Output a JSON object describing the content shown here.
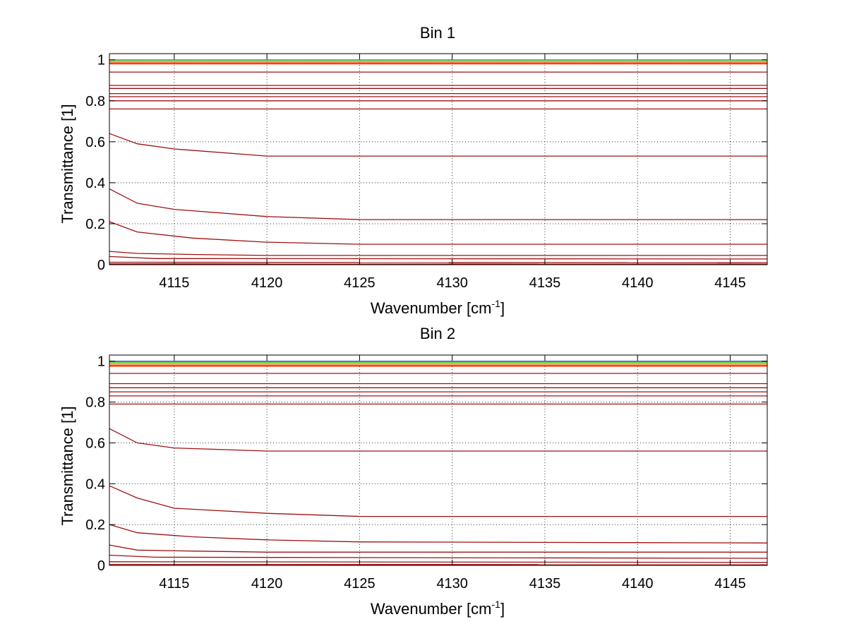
{
  "chart_data": [
    {
      "type": "line",
      "title": "Bin 1",
      "xlabel": "Wavenumber [cm",
      "xlabel_sup": "-1",
      "xlabel_end": "]",
      "ylabel": "Transmittance [1]",
      "xlim": [
        4111.5,
        4147.0
      ],
      "ylim": [
        0,
        1.03
      ],
      "xticks": [
        4115,
        4120,
        4125,
        4130,
        4135,
        4140,
        4145
      ],
      "xtick_labels": [
        "4115",
        "4120",
        "4125",
        "4130",
        "4135",
        "4140",
        "4145"
      ],
      "yticks": [
        0,
        0.2,
        0.4,
        0.6,
        0.8,
        1
      ],
      "ytick_labels": [
        "0",
        "0.2",
        "0.4",
        "0.6",
        "0.8",
        "1"
      ],
      "grid": true,
      "series": [
        {
          "color": "#1f5fd6",
          "x": [
            4111.5,
            4147.0
          ],
          "y": [
            0.999,
            0.999
          ]
        },
        {
          "color": "#22b5d8",
          "x": [
            4111.5,
            4147.0
          ],
          "y": [
            0.997,
            0.997
          ]
        },
        {
          "color": "#6cc24a",
          "x": [
            4111.5,
            4147.0
          ],
          "y": [
            0.995,
            0.995
          ]
        },
        {
          "color": "#e8d21a",
          "x": [
            4111.5,
            4147.0
          ],
          "y": [
            0.993,
            0.993
          ]
        },
        {
          "color": "#f59a1c",
          "x": [
            4111.5,
            4147.0
          ],
          "y": [
            0.99,
            0.99
          ]
        },
        {
          "color": "#ff2a00",
          "x": [
            4111.5,
            4147.0
          ],
          "y": [
            0.985,
            0.985
          ]
        },
        {
          "color": "#ff2a00",
          "x": [
            4111.5,
            4147.0
          ],
          "y": [
            0.98,
            0.98
          ]
        },
        {
          "color": "#a01010",
          "x": [
            4111.5,
            4147.0
          ],
          "y": [
            0.94,
            0.94
          ]
        },
        {
          "color": "#a01010",
          "x": [
            4111.5,
            4147.0
          ],
          "y": [
            0.875,
            0.875
          ]
        },
        {
          "color": "#a01010",
          "x": [
            4111.5,
            4147.0
          ],
          "y": [
            0.86,
            0.86
          ]
        },
        {
          "color": "#a01010",
          "x": [
            4111.5,
            4147.0
          ],
          "y": [
            0.835,
            0.835
          ]
        },
        {
          "color": "#a01010",
          "x": [
            4111.5,
            4147.0
          ],
          "y": [
            0.82,
            0.82
          ]
        },
        {
          "color": "#a01010",
          "x": [
            4111.5,
            4147.0
          ],
          "y": [
            0.8,
            0.8
          ]
        },
        {
          "color": "#a01010",
          "x": [
            4111.5,
            4147.0
          ],
          "y": [
            0.76,
            0.76
          ]
        },
        {
          "color": "#a01010",
          "x": [
            4111.5,
            4113,
            4115,
            4120,
            4147.0
          ],
          "y": [
            0.64,
            0.59,
            0.565,
            0.53,
            0.53
          ]
        },
        {
          "color": "#a01010",
          "x": [
            4111.5,
            4113,
            4115,
            4120,
            4125,
            4147.0
          ],
          "y": [
            0.37,
            0.3,
            0.27,
            0.235,
            0.22,
            0.22
          ]
        },
        {
          "color": "#a01010",
          "x": [
            4111.5,
            4113,
            4116,
            4120,
            4125,
            4147.0
          ],
          "y": [
            0.21,
            0.16,
            0.13,
            0.11,
            0.1,
            0.1
          ]
        },
        {
          "color": "#a01010",
          "x": [
            4111.5,
            4113,
            4116,
            4120,
            4147.0
          ],
          "y": [
            0.065,
            0.055,
            0.05,
            0.045,
            0.045
          ]
        },
        {
          "color": "#a01010",
          "x": [
            4111.5,
            4114,
            4147.0
          ],
          "y": [
            0.04,
            0.03,
            0.028
          ]
        },
        {
          "color": "#a01010",
          "x": [
            4111.5,
            4147.0
          ],
          "y": [
            0.012,
            0.01
          ]
        },
        {
          "color": "#a01010",
          "x": [
            4111.5,
            4147.0
          ],
          "y": [
            0.004,
            0.003
          ]
        }
      ]
    },
    {
      "type": "line",
      "title": "Bin 2",
      "xlabel": "Wavenumber [cm",
      "xlabel_sup": "-1",
      "xlabel_end": "]",
      "ylabel": "Transmittance [1]",
      "xlim": [
        4111.5,
        4147.0
      ],
      "ylim": [
        0,
        1.03
      ],
      "xticks": [
        4115,
        4120,
        4125,
        4130,
        4135,
        4140,
        4145
      ],
      "xtick_labels": [
        "4115",
        "4120",
        "4125",
        "4130",
        "4135",
        "4140",
        "4145"
      ],
      "yticks": [
        0,
        0.2,
        0.4,
        0.6,
        0.8,
        1
      ],
      "ytick_labels": [
        "0",
        "0.2",
        "0.4",
        "0.6",
        "0.8",
        "1"
      ],
      "grid": true,
      "series": [
        {
          "color": "#1f5fd6",
          "x": [
            4111.5,
            4147.0
          ],
          "y": [
            1.0,
            1.0
          ]
        },
        {
          "color": "#22b5d8",
          "x": [
            4111.5,
            4147.0
          ],
          "y": [
            0.997,
            0.997
          ]
        },
        {
          "color": "#6cc24a",
          "x": [
            4111.5,
            4147.0
          ],
          "y": [
            0.993,
            0.993
          ]
        },
        {
          "color": "#e8d21a",
          "x": [
            4111.5,
            4147.0
          ],
          "y": [
            0.99,
            0.99
          ]
        },
        {
          "color": "#f59a1c",
          "x": [
            4111.5,
            4147.0
          ],
          "y": [
            0.986,
            0.986
          ]
        },
        {
          "color": "#ff2a00",
          "x": [
            4111.5,
            4147.0
          ],
          "y": [
            0.98,
            0.98
          ]
        },
        {
          "color": "#ff2a00",
          "x": [
            4111.5,
            4147.0
          ],
          "y": [
            0.975,
            0.975
          ]
        },
        {
          "color": "#a01010",
          "x": [
            4111.5,
            4147.0
          ],
          "y": [
            0.94,
            0.94
          ]
        },
        {
          "color": "#a01010",
          "x": [
            4111.5,
            4147.0
          ],
          "y": [
            0.89,
            0.89
          ]
        },
        {
          "color": "#a01010",
          "x": [
            4111.5,
            4147.0
          ],
          "y": [
            0.87,
            0.87
          ]
        },
        {
          "color": "#a01010",
          "x": [
            4111.5,
            4147.0
          ],
          "y": [
            0.85,
            0.85
          ]
        },
        {
          "color": "#a01010",
          "x": [
            4111.5,
            4147.0
          ],
          "y": [
            0.83,
            0.83
          ]
        },
        {
          "color": "#a01010",
          "x": [
            4111.5,
            4147.0
          ],
          "y": [
            0.79,
            0.79
          ]
        },
        {
          "color": "#a01010",
          "x": [
            4111.5,
            4113,
            4115,
            4120,
            4147.0
          ],
          "y": [
            0.67,
            0.6,
            0.575,
            0.56,
            0.56
          ]
        },
        {
          "color": "#a01010",
          "x": [
            4111.5,
            4113,
            4115,
            4120,
            4125,
            4147.0
          ],
          "y": [
            0.39,
            0.33,
            0.28,
            0.255,
            0.24,
            0.24
          ]
        },
        {
          "color": "#a01010",
          "x": [
            4111.5,
            4113,
            4116,
            4120,
            4125,
            4147.0
          ],
          "y": [
            0.2,
            0.16,
            0.14,
            0.125,
            0.115,
            0.11
          ]
        },
        {
          "color": "#a01010",
          "x": [
            4111.5,
            4113,
            4116,
            4120,
            4147.0
          ],
          "y": [
            0.1,
            0.075,
            0.07,
            0.065,
            0.065
          ]
        },
        {
          "color": "#a01010",
          "x": [
            4111.5,
            4114,
            4147.0
          ],
          "y": [
            0.05,
            0.04,
            0.035
          ]
        },
        {
          "color": "#a01010",
          "x": [
            4111.5,
            4147.0
          ],
          "y": [
            0.018,
            0.015
          ]
        },
        {
          "color": "#a01010",
          "x": [
            4111.5,
            4147.0
          ],
          "y": [
            0.005,
            0.004
          ]
        }
      ]
    }
  ]
}
